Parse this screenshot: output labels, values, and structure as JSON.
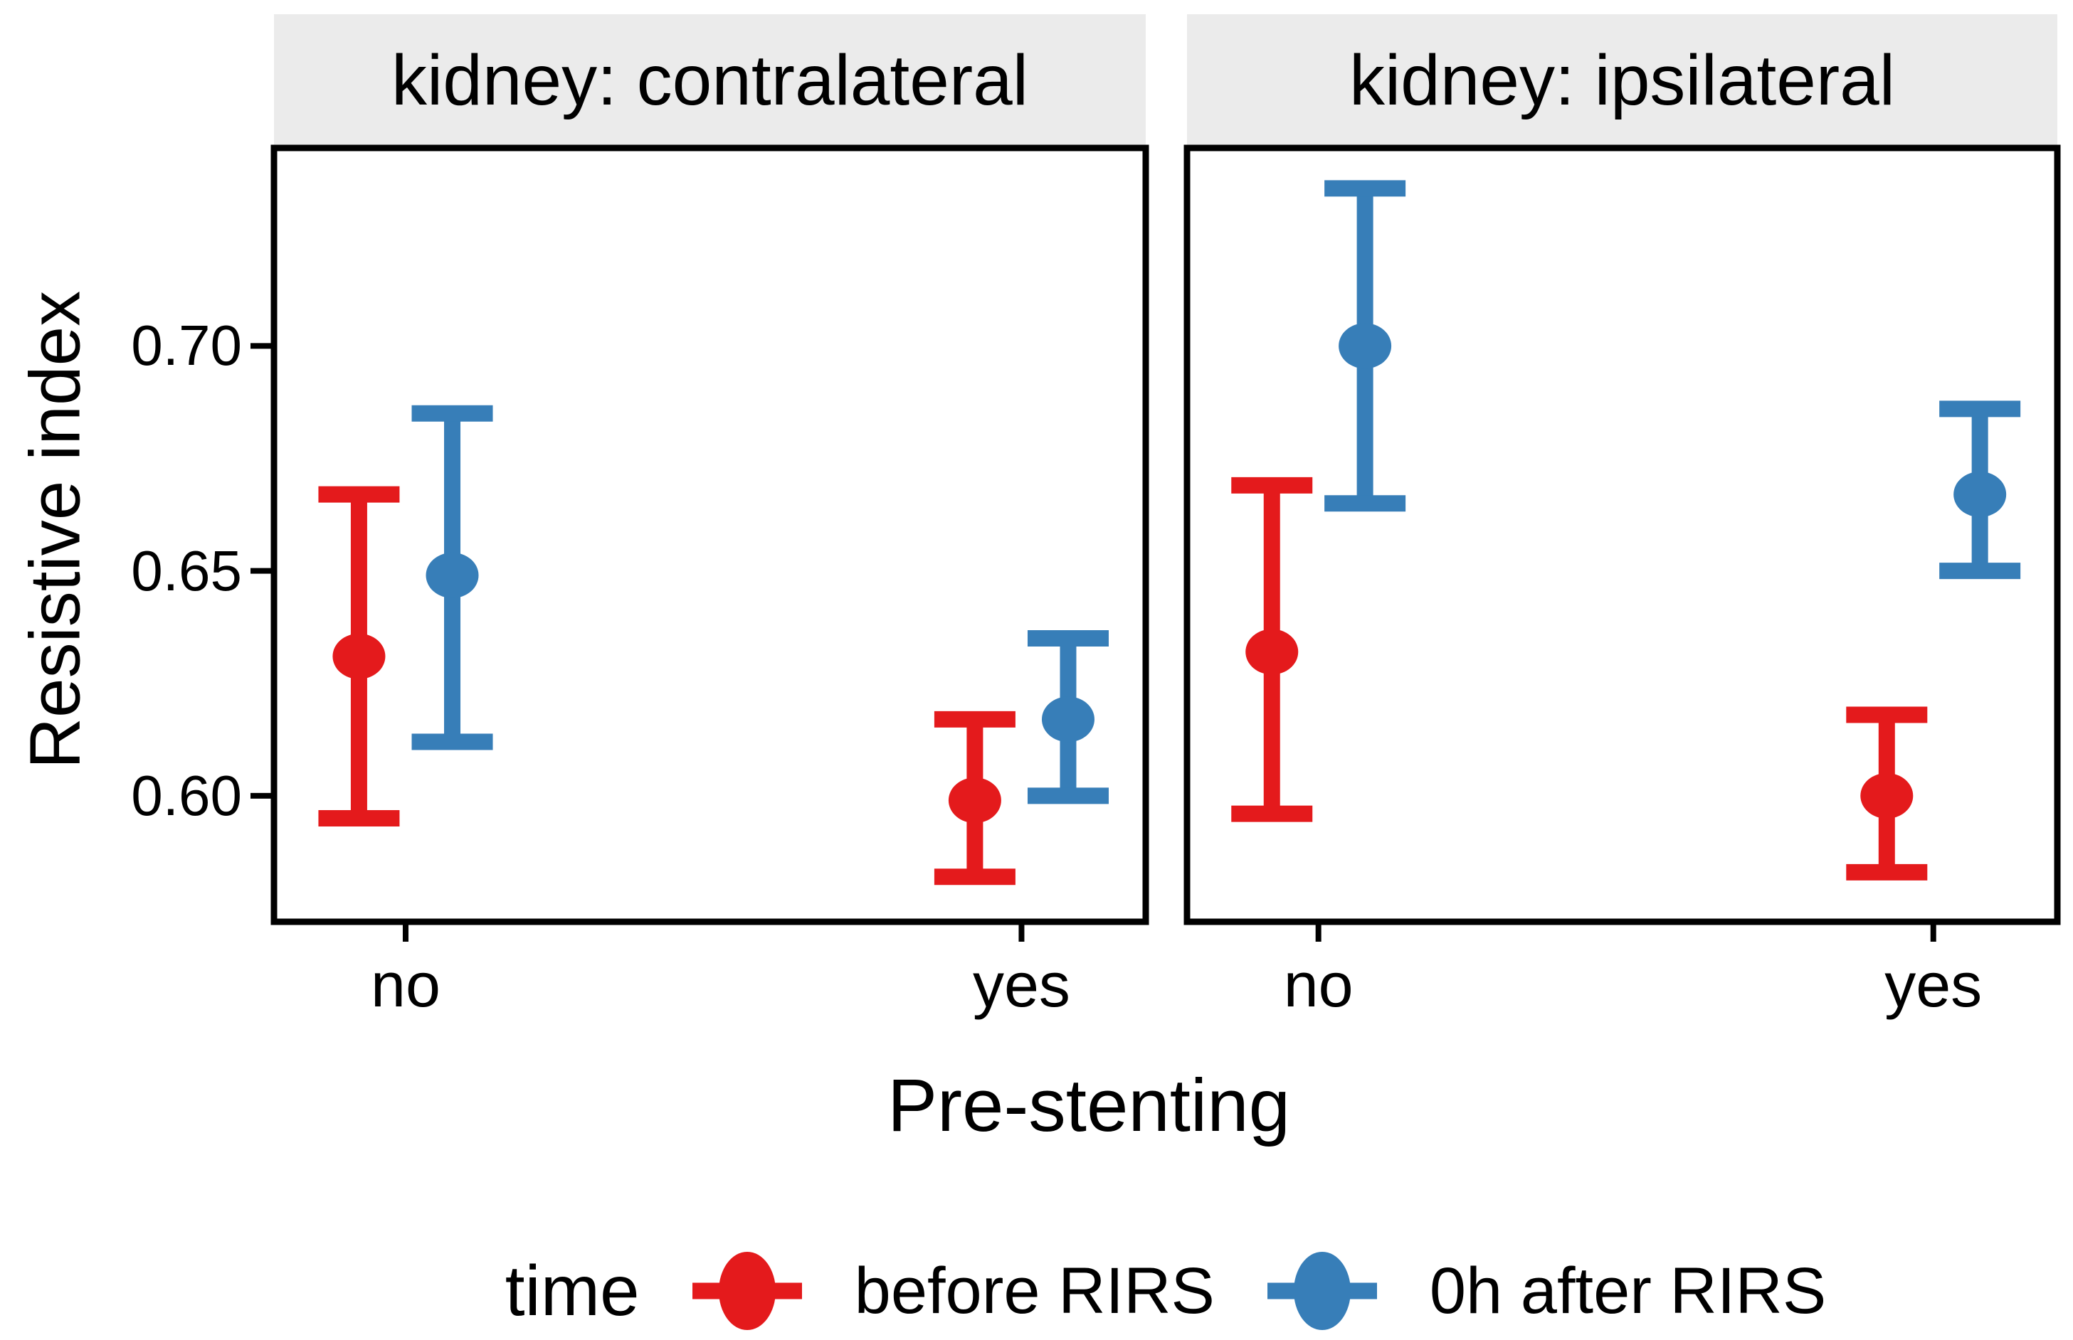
{
  "y_axis": {
    "label": "Resistive index",
    "tick_labels": [
      "0.70",
      "0.65",
      "0.60"
    ]
  },
  "x_axis": {
    "label": "Pre-stenting",
    "tick_labels": [
      "no",
      "yes"
    ]
  },
  "legend": {
    "title": "time",
    "items": [
      {
        "label": "before RIRS",
        "color": "#E41A1C"
      },
      {
        "label": "0h after RIRS",
        "color": "#377EB8"
      }
    ]
  },
  "colors": {
    "red": "#E41A1C",
    "blue": "#377EB8",
    "strip_bg": "#EBEBEB",
    "panel_border": "#000000",
    "background": "#FFFFFF"
  },
  "chart_data": {
    "type": "pointrange",
    "x_variable": "Pre-stenting",
    "y_variable": "Resistive index",
    "facet_variable": "kidney",
    "categories": [
      "no",
      "yes"
    ],
    "ylim": [
      0.572,
      0.744
    ],
    "yticks": [
      0.7,
      0.65,
      0.6
    ],
    "ytick_labels": [
      "0.70",
      "0.65",
      "0.60"
    ],
    "grid": false,
    "legend_position": "bottom",
    "series": [
      {
        "name": "before RIRS",
        "color": "#E41A1C"
      },
      {
        "name": "0h after RIRS",
        "color": "#377EB8"
      }
    ],
    "facets": [
      {
        "title": "kidney: contralateral",
        "points": [
          {
            "series": "before RIRS",
            "x": "no",
            "mean": 0.631,
            "lower": 0.595,
            "upper": 0.667
          },
          {
            "series": "0h after RIRS",
            "x": "no",
            "mean": 0.649,
            "lower": 0.612,
            "upper": 0.685
          },
          {
            "series": "before RIRS",
            "x": "yes",
            "mean": 0.599,
            "lower": 0.582,
            "upper": 0.617
          },
          {
            "series": "0h after RIRS",
            "x": "yes",
            "mean": 0.617,
            "lower": 0.6,
            "upper": 0.635
          }
        ]
      },
      {
        "title": "kidney: ipsilateral",
        "points": [
          {
            "series": "before RIRS",
            "x": "no",
            "mean": 0.632,
            "lower": 0.596,
            "upper": 0.669
          },
          {
            "series": "0h after RIRS",
            "x": "no",
            "mean": 0.7,
            "lower": 0.665,
            "upper": 0.735
          },
          {
            "series": "before RIRS",
            "x": "yes",
            "mean": 0.6,
            "lower": 0.583,
            "upper": 0.618
          },
          {
            "series": "0h after RIRS",
            "x": "yes",
            "mean": 0.667,
            "lower": 0.65,
            "upper": 0.686
          }
        ]
      }
    ]
  }
}
